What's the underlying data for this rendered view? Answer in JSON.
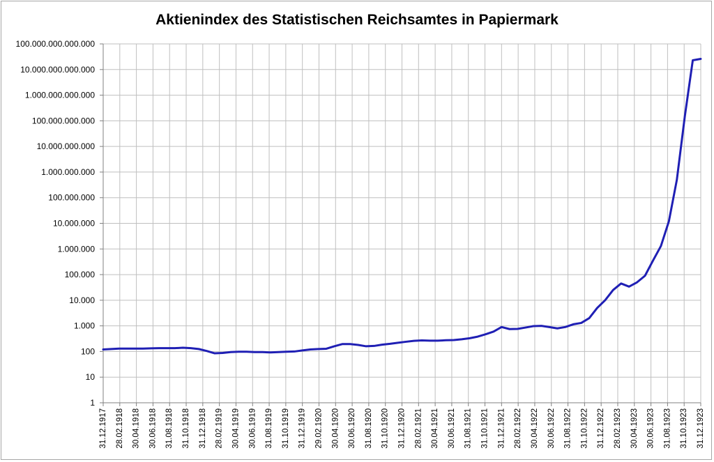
{
  "chart_data": {
    "type": "line",
    "title": "Aktienindex des Statistischen Reichsamtes in Papiermark",
    "xlabel": "",
    "ylabel": "",
    "y_scale": "log",
    "ylim": [
      1,
      100000000000000
    ],
    "y_ticks": [
      1,
      10,
      100,
      1000,
      10000,
      100000,
      1000000,
      10000000,
      100000000,
      1000000000,
      10000000000,
      100000000000,
      1000000000000,
      10000000000000,
      100000000000000
    ],
    "y_tick_labels": [
      "1",
      "10",
      "100",
      "1.000",
      "10.000",
      "100.000",
      "1.000.000",
      "10.000.000",
      "100.000.000",
      "1.000.000.000",
      "10.000.000.000",
      "100.000.000.000",
      "1.000.000.000.000",
      "10.000.000.000.000",
      "100.000.000.000.000"
    ],
    "x_tick_labels": [
      "31.12.1917",
      "28.02.1918",
      "30.04.1918",
      "30.06.1918",
      "31.08.1918",
      "31.10.1918",
      "31.12.1918",
      "28.02.1919",
      "30.04.1919",
      "30.06.1919",
      "31.08.1919",
      "31.10.1919",
      "31.12.1919",
      "29.02.1920",
      "30.04.1920",
      "30.06.1920",
      "31.08.1920",
      "31.10.1920",
      "31.12.1920",
      "28.02.1921",
      "30.04.1921",
      "30.06.1921",
      "31.08.1921",
      "31.10.1921",
      "31.12.1921",
      "28.02.1922",
      "30.04.1922",
      "30.06.1922",
      "31.08.1922",
      "31.10.1922",
      "31.12.1922",
      "28.02.1923",
      "30.04.1923",
      "30.06.1923",
      "31.08.1923",
      "31.10.1923",
      "31.12.1923"
    ],
    "grid": true,
    "legend": "none",
    "series": [
      {
        "color": "#1f1fb4",
        "values": [
          120,
          125,
          130,
          130,
          130,
          130,
          133,
          135,
          135,
          135,
          140,
          135,
          125,
          105,
          85,
          88,
          95,
          98,
          98,
          95,
          95,
          92,
          95,
          98,
          100,
          110,
          120,
          125,
          128,
          160,
          195,
          195,
          180,
          160,
          165,
          185,
          200,
          220,
          240,
          260,
          270,
          265,
          265,
          275,
          280,
          300,
          330,
          380,
          470,
          600,
          900,
          750,
          760,
          860,
          980,
          1000,
          900,
          800,
          900,
          1150,
          1300,
          2000,
          5000,
          10000,
          25000,
          45000,
          34000,
          50000,
          90000,
          350000,
          1300000,
          12000000,
          500000000,
          150000000000,
          23000000000000,
          26000000000000
        ]
      }
    ]
  }
}
